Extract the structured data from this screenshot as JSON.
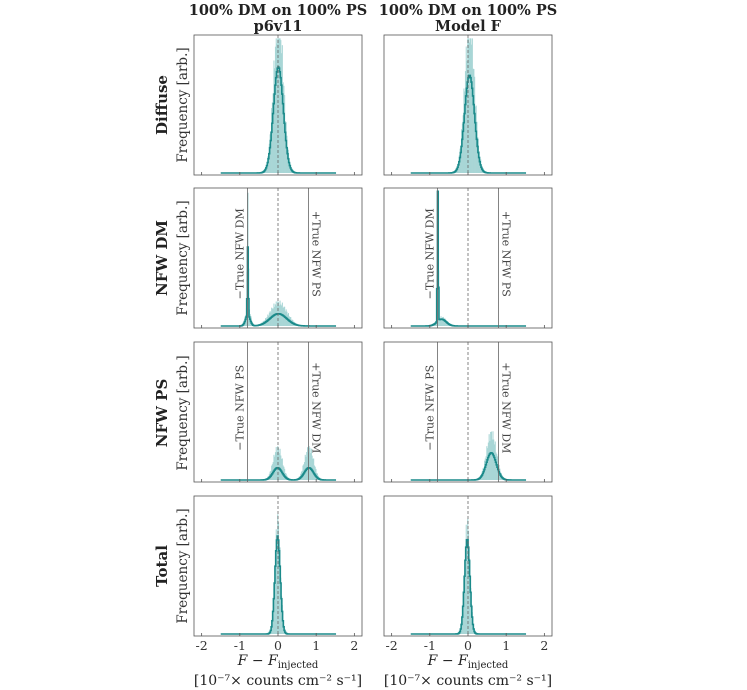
{
  "figure": {
    "columns": [
      {
        "title_line1": "100% DM on 100% PS",
        "title_line2": "p6v11",
        "xlabel_line1": "F − F",
        "xlabel_sub": "injected",
        "xlabel_line2": "[10⁻⁷× counts cm⁻² s⁻¹]"
      },
      {
        "title_line1": "100% DM on 100% PS",
        "title_line2": "Model F",
        "xlabel_line1": "F − F",
        "xlabel_sub": "injected",
        "xlabel_line2": "[10⁻⁷× counts cm⁻² s⁻¹]"
      }
    ],
    "rows": [
      {
        "label": "Diffuse",
        "ylabel": "Frequency [arb.]"
      },
      {
        "label": "NFW DM",
        "ylabel": "Frequency [arb.]"
      },
      {
        "label": "NFW PS",
        "ylabel": "Frequency [arb.]"
      },
      {
        "label": "Total",
        "ylabel": "Frequency [arb.]"
      }
    ],
    "colors": {
      "line": "#1a8a8a",
      "band": "#a8d6d6",
      "axis": "#555555",
      "ref": "#666666"
    }
  },
  "chart_data": {
    "type": "histogram-grid",
    "xlim": [
      -2.2,
      2.2
    ],
    "xticks": [
      -2,
      -1,
      0,
      1,
      2
    ],
    "xtick_labels": [
      "-2",
      "-1",
      "0",
      "1",
      "2"
    ],
    "xlabel": "F − F_injected [10⁻⁷× counts cm⁻² s⁻¹]",
    "ylabel": "Frequency [arb.]",
    "panels": [
      {
        "row": "Diffuse",
        "column": "p6v11",
        "center_line": 0,
        "support": [
          -1.5,
          1.5
        ],
        "components": [
          {
            "mu": 0.0,
            "sigma": 0.13,
            "amp": 0.78
          }
        ],
        "band_scale": 1.45,
        "vlines": []
      },
      {
        "row": "Diffuse",
        "column": "Model F",
        "center_line": 0,
        "support": [
          -1.5,
          1.5
        ],
        "components": [
          {
            "mu": 0.03,
            "sigma": 0.13,
            "amp": 0.72
          }
        ],
        "band_scale": 1.5,
        "vlines": []
      },
      {
        "row": "NFW DM",
        "column": "p6v11",
        "center_line": 0,
        "support": [
          -1.5,
          1.5
        ],
        "components": [
          {
            "mu": -0.8,
            "sigma": 0.012,
            "amp": 0.5
          },
          {
            "mu": -0.8,
            "sigma": 0.06,
            "amp": 0.08
          },
          {
            "mu": 0.0,
            "sigma": 0.22,
            "amp": 0.09
          }
        ],
        "band_scale": 1.9,
        "vlines": [
          {
            "x": -0.8,
            "label": "−True NFW DM",
            "label_side": "left"
          },
          {
            "x": 0.8,
            "label": "+True NFW PS",
            "label_side": "right"
          }
        ]
      },
      {
        "row": "NFW DM",
        "column": "Model F",
        "center_line": 0,
        "support": [
          -1.5,
          1.5
        ],
        "components": [
          {
            "mu": -0.8,
            "sigma": 0.012,
            "amp": 0.98
          },
          {
            "mu": -0.7,
            "sigma": 0.12,
            "amp": 0.05
          }
        ],
        "band_scale": 1.3,
        "vlines": [
          {
            "x": -0.8,
            "label": "−True NFW DM",
            "label_side": "left"
          },
          {
            "x": 0.8,
            "label": "+True NFW PS",
            "label_side": "right"
          }
        ]
      },
      {
        "row": "NFW PS",
        "column": "p6v11",
        "center_line": 0,
        "support": [
          -1.5,
          1.5
        ],
        "components": [
          {
            "mu": -0.02,
            "sigma": 0.12,
            "amp": 0.09
          },
          {
            "mu": 0.8,
            "sigma": 0.12,
            "amp": 0.09
          }
        ],
        "band_scale": 2.6,
        "vlines": [
          {
            "x": -0.8,
            "label": "−True NFW PS",
            "label_side": "left"
          },
          {
            "x": 0.8,
            "label": "+True NFW DM",
            "label_side": "right"
          }
        ]
      },
      {
        "row": "NFW PS",
        "column": "Model F",
        "center_line": 0,
        "support": [
          -1.5,
          1.5
        ],
        "components": [
          {
            "mu": 0.6,
            "sigma": 0.13,
            "amp": 0.2
          }
        ],
        "band_scale": 1.7,
        "vlines": [
          {
            "x": -0.8,
            "label": "−True NFW PS",
            "label_side": "left"
          },
          {
            "x": 0.8,
            "label": "+True NFW DM",
            "label_side": "right"
          }
        ]
      },
      {
        "row": "Total",
        "column": "p6v11",
        "center_line": 0,
        "support": [
          -1.5,
          1.5
        ],
        "components": [
          {
            "mu": -0.02,
            "sigma": 0.07,
            "amp": 0.72
          }
        ],
        "band_scale": 1.15,
        "vlines": []
      },
      {
        "row": "Total",
        "column": "Model F",
        "center_line": 0,
        "support": [
          -1.5,
          1.5
        ],
        "components": [
          {
            "mu": -0.03,
            "sigma": 0.07,
            "amp": 0.7
          }
        ],
        "band_scale": 1.15,
        "vlines": []
      }
    ]
  }
}
